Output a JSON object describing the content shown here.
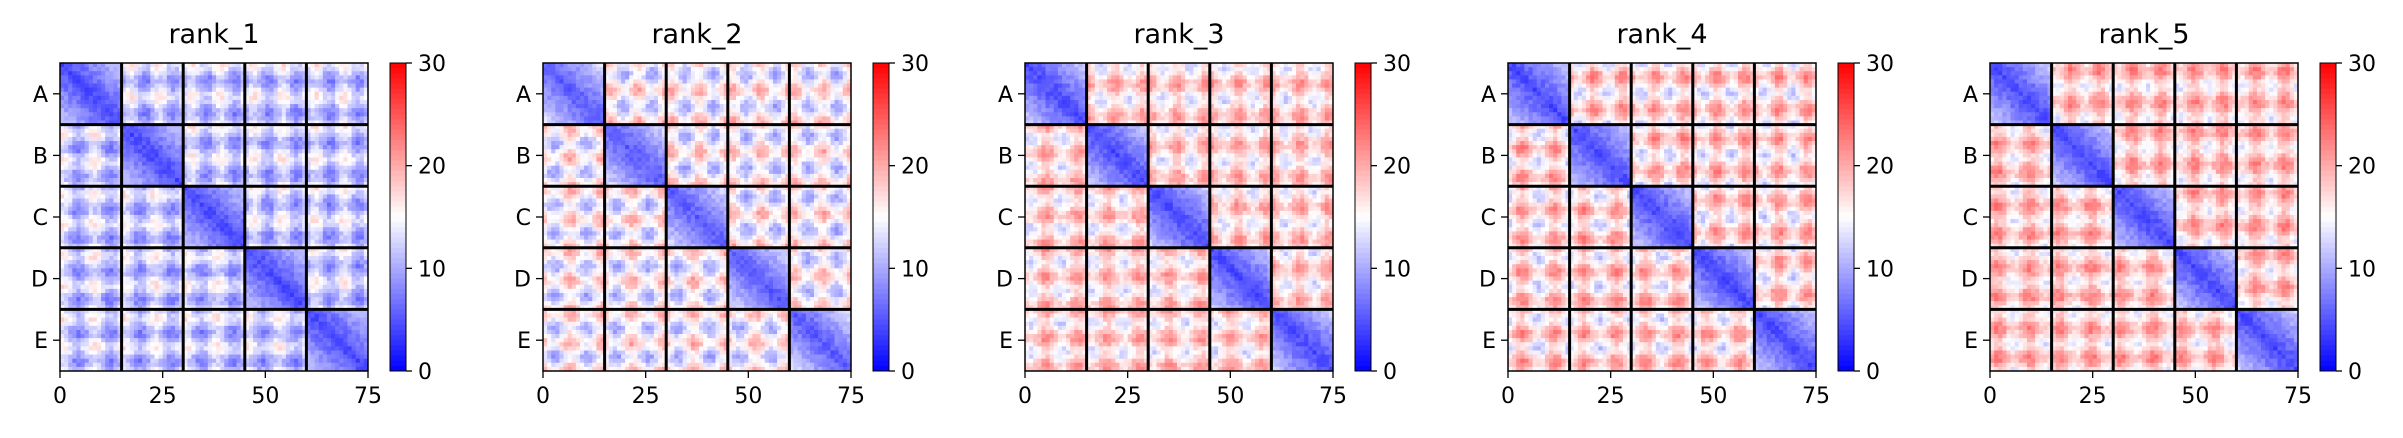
{
  "chart_data": {
    "type": "heatmap",
    "colormap": "bwr",
    "vmin": 0,
    "vmax": 30,
    "colorbar_ticks": [
      0,
      10,
      20,
      30
    ],
    "x_ticks": [
      0,
      25,
      50,
      75
    ],
    "xlim": [
      0,
      75
    ],
    "matrix_size": 75,
    "y_tick_labels": [
      "A",
      "B",
      "C",
      "D",
      "E"
    ],
    "chain_boundaries": [
      15,
      30,
      45,
      60
    ],
    "panels": [
      {
        "title": "rank_1",
        "diag_value": 3,
        "off_diag_mean": 12,
        "off_diag_max": 18
      },
      {
        "title": "rank_2",
        "diag_value": 4,
        "off_diag_mean": 15,
        "off_diag_max": 22
      },
      {
        "title": "rank_3",
        "diag_value": 3,
        "off_diag_mean": 17,
        "off_diag_max": 23
      },
      {
        "title": "rank_4",
        "diag_value": 3,
        "off_diag_mean": 17,
        "off_diag_max": 24
      },
      {
        "title": "rank_5",
        "diag_value": 3,
        "off_diag_mean": 18,
        "off_diag_max": 24
      }
    ]
  }
}
